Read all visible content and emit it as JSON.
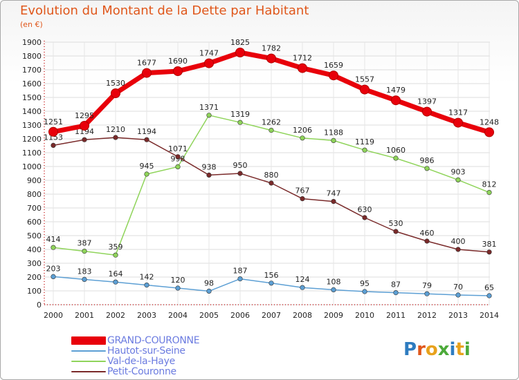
{
  "header": {
    "title": "Evolution du Montant de la Dette par Habitant",
    "subtitle": "(en €)"
  },
  "logo": {
    "text": "Proxiti",
    "letter_colors": [
      "#2e7cc0",
      "#e0571b",
      "#e8a21c",
      "#4caa3a",
      "#2e7cc0",
      "#e8a21c",
      "#4caa3a"
    ]
  },
  "chart_data": {
    "type": "line",
    "title": "Evolution du Montant de la Dette par Habitant",
    "subtitle": "(en €)",
    "xlabel": "",
    "ylabel": "",
    "x": [
      "2000",
      "2001",
      "2002",
      "2003",
      "2004",
      "2005",
      "2006",
      "2007",
      "2008",
      "2009",
      "2010",
      "2011",
      "2012",
      "2013",
      "2014"
    ],
    "ylim": [
      0,
      1900
    ],
    "yticks": [
      0,
      100,
      200,
      300,
      400,
      500,
      600,
      700,
      800,
      900,
      1000,
      1100,
      1200,
      1300,
      1400,
      1500,
      1600,
      1700,
      1800,
      1900
    ],
    "grid": true,
    "legend_position": "bottom-left",
    "series": [
      {
        "name": "GRAND-COURONNE",
        "color": "#e8000a",
        "emphasis": "thick",
        "values": [
          1251,
          1295,
          1530,
          1677,
          1690,
          1747,
          1825,
          1782,
          1712,
          1659,
          1557,
          1479,
          1397,
          1317,
          1248
        ],
        "labels": [
          "1251",
          "1295",
          "1530",
          "1677",
          "1690",
          "1747",
          "1825",
          "1782",
          "1712",
          "1659",
          "1557",
          "1479",
          "1397",
          "1317",
          "1248"
        ]
      },
      {
        "name": "Hautot-sur-Seine",
        "color": "#5c9fd4",
        "values": [
          203,
          183,
          164,
          142,
          120,
          98,
          187,
          156,
          124,
          108,
          95,
          87,
          79,
          70,
          65
        ],
        "labels": [
          "203",
          "183",
          "164",
          "142",
          "120",
          "98",
          "187",
          "156",
          "124",
          "108",
          "95",
          "87",
          "79",
          "70",
          "65"
        ]
      },
      {
        "name": "Val-de-la-Haye",
        "color": "#8fd45a",
        "values": [
          414,
          387,
          359,
          945,
          998,
          1371,
          1319,
          1262,
          1206,
          1188,
          1119,
          1060,
          986,
          903,
          812
        ],
        "labels": [
          "414",
          "387",
          "359",
          "945",
          "998",
          "1371",
          "1319",
          "1262",
          "1206",
          "1188",
          "1119",
          "1060",
          "986",
          "903",
          "812"
        ]
      },
      {
        "name": "Petit-Couronne",
        "color": "#7a2a2a",
        "values": [
          1153,
          1194,
          1210,
          1194,
          1071,
          938,
          950,
          880,
          767,
          747,
          630,
          530,
          460,
          400,
          381
        ],
        "labels": [
          "1153",
          "1194",
          "1210",
          "1194",
          "1071",
          "938",
          "950",
          "880",
          "767",
          "747",
          "630",
          "530",
          "460",
          "400",
          "381"
        ]
      }
    ]
  }
}
